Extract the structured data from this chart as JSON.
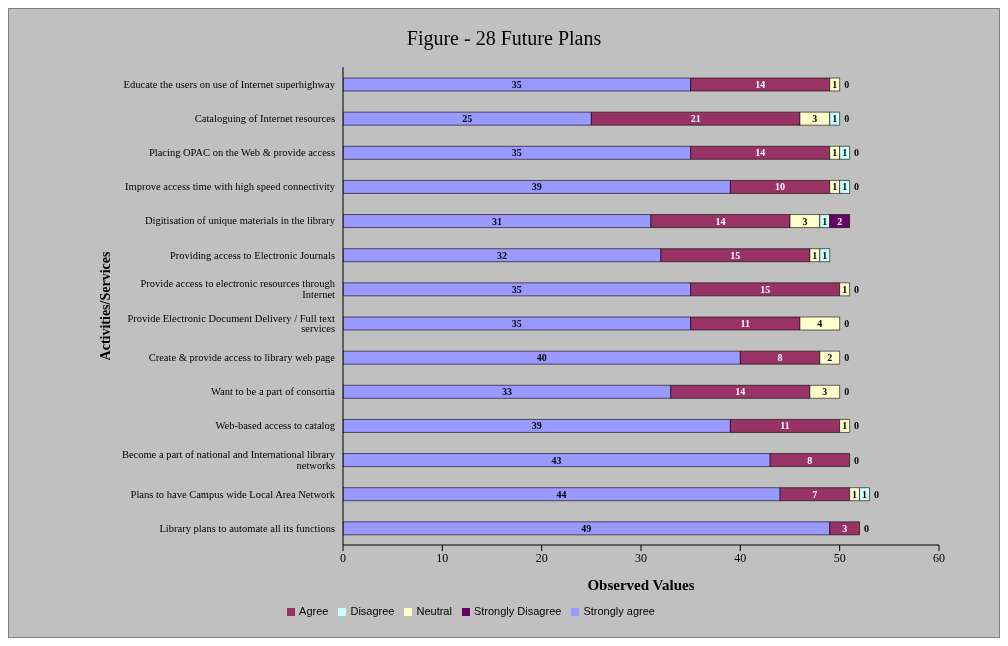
{
  "chart_data": {
    "type": "bar",
    "orientation": "horizontal",
    "stacked": true,
    "title": "Figure - 28 Future Plans",
    "xlabel": "Observed Values",
    "ylabel": "Activities/Services",
    "categories": [
      "Educate the users on use of Internet superhighway",
      "Cataloguing of Internet resources",
      "Placing OPAC on the Web & provide access",
      "Improve access time with high speed connectivity",
      "Digitisation of unique materials in the library",
      "Providing access to Electronic Journals",
      "Provide access to electronic resources through Internet",
      "Provide Electronic Document Delivery / Full text services",
      "Create & provide access to library web page",
      "Want to be a part of consortia",
      "Web-based access to catalog",
      "Become a part of national and International library networks",
      "Plans to have Campus wide Local Area Network",
      "Library plans to automate all its functions"
    ],
    "series": [
      {
        "name": "Strongly agree",
        "color": "#9999ff",
        "values": [
          35,
          25,
          35,
          39,
          31,
          32,
          35,
          35,
          40,
          33,
          39,
          43,
          44,
          49
        ],
        "value_labels": [
          "35",
          "25",
          "35",
          "39",
          "31",
          "32",
          "35",
          "35",
          "40",
          "33",
          "39",
          "43",
          "44",
          "49"
        ]
      },
      {
        "name": "Agree",
        "color": "#993366",
        "values": [
          14,
          21,
          14,
          10,
          14,
          15,
          15,
          11,
          8,
          14,
          11,
          8,
          7,
          3
        ],
        "value_labels": [
          "14",
          "21",
          "14",
          "10",
          "14",
          "15",
          "15",
          "11",
          "8",
          "14",
          "11",
          "8",
          "7",
          "3"
        ]
      },
      {
        "name": "Neutral",
        "color": "#ffffcc",
        "values": [
          1,
          3,
          1,
          1,
          3,
          1,
          1,
          4,
          2,
          3,
          1,
          0,
          1,
          0
        ],
        "value_labels": [
          "1",
          "3",
          "1",
          "1",
          "3",
          "1",
          "1",
          "4",
          "2",
          "3",
          "1",
          null,
          "1",
          null
        ]
      },
      {
        "name": "Disagree",
        "color": "#ccffff",
        "values": [
          0,
          1,
          1,
          1,
          1,
          1,
          0,
          0,
          0,
          0,
          0,
          0,
          1,
          0
        ],
        "value_labels": [
          null,
          "1",
          "1",
          "1",
          "1",
          "1",
          null,
          null,
          null,
          null,
          null,
          null,
          "1",
          null
        ]
      },
      {
        "name": "Strongly Disagree",
        "color": "#660066",
        "values": [
          0,
          0,
          0,
          0,
          2,
          0,
          0,
          0,
          0,
          0,
          0,
          0,
          0,
          0
        ],
        "value_labels": [
          "0",
          "0",
          "0",
          "0",
          "2",
          null,
          "0",
          "0",
          "0",
          "0",
          "0",
          "0",
          "0",
          "0"
        ]
      }
    ],
    "xlim": [
      0,
      60
    ],
    "xticks": [
      0,
      10,
      20,
      30,
      40,
      50,
      60
    ],
    "legend": "bottom"
  }
}
